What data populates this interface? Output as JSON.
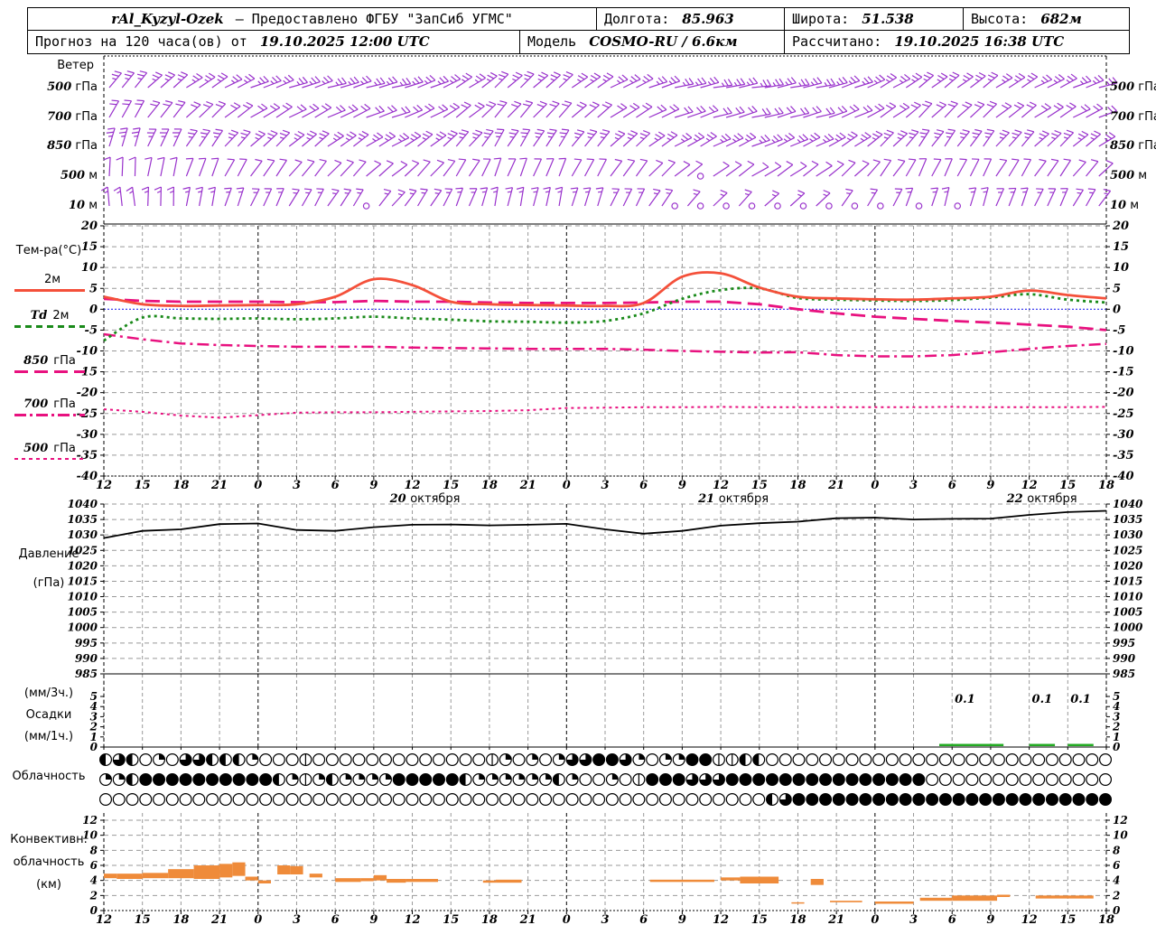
{
  "header": {
    "station": "rAl_Kyzyl-Ozek",
    "provider": "— Предоставлено ФГБУ \"ЗапСиб УГМС\"",
    "lon_label": "Долгота:",
    "lon": "85.963",
    "lat_label": "Широта:",
    "lat": "51.538",
    "alt_label": "Высота:",
    "alt": "682м",
    "forecast_label": "Прогноз на 120 часа(ов) от",
    "forecast_time": "19.10.2025 12:00 UTC",
    "model_label": "Модель",
    "model_value": "COSMO-RU / 6.6км",
    "calc_label": "Рассчитано:",
    "calc_time": "19.10.2025 16:38 UTC"
  },
  "labels": {
    "wind_title": "Ветер",
    "wind_levels": [
      {
        "num": "500",
        "unit": "гПа"
      },
      {
        "num": "700",
        "unit": "гПа"
      },
      {
        "num": "850",
        "unit": "гПа"
      },
      {
        "num": "500",
        "unit": "м"
      },
      {
        "num": "10",
        "unit": "м"
      }
    ],
    "temperature_title": "Тем-ра(°C)",
    "series": [
      {
        "name": "",
        "level": "2м"
      },
      {
        "name": "Td",
        "level": "2м"
      },
      {
        "name": "850",
        "level": "гПа"
      },
      {
        "name": "700",
        "level": "гПа"
      },
      {
        "name": "500",
        "level": "гПа"
      }
    ],
    "pressure": [
      "Давление",
      "(гПа)"
    ],
    "precip": [
      "(мм/3ч.)",
      "Осадки",
      "(мм/1ч.)"
    ],
    "clouds": "Облачность",
    "convective": [
      "Конвективн.",
      "облачность",
      "(км)"
    ]
  },
  "colors": {
    "wind": "#9932cc",
    "t2m": "#f4503a",
    "td2m": "#1a8a1a",
    "t_upper": "#e8117f",
    "zero_line": "#2a2aee",
    "pressure": "#000000",
    "precip_bar": "#22aa22",
    "convective_bar": "#ef8b3a",
    "grid": "#999999"
  },
  "x_axis": {
    "hours": [
      "12",
      "15",
      "18",
      "21",
      "0",
      "3",
      "6",
      "9",
      "12",
      "15",
      "18",
      "21",
      "0",
      "3",
      "6",
      "9",
      "12",
      "15",
      "18",
      "21",
      "0",
      "3",
      "6",
      "9",
      "12",
      "15",
      "18"
    ],
    "dates": [
      {
        "label": "20 октября",
        "tick": 8
      },
      {
        "label": "21 октября",
        "tick": 16
      },
      {
        "label": "22 октября",
        "tick": 24
      }
    ]
  },
  "chart_data": [
    {
      "panel": "wind",
      "type": "wind-barbs",
      "title": "Ветер",
      "levels": [
        {
          "label": "500 гПа",
          "feathers": 2,
          "half": true,
          "calm": [],
          "angles": [
            55,
            45,
            35,
            28,
            22,
            18,
            15,
            15,
            20,
            30,
            40,
            45,
            38,
            28,
            20,
            14,
            10,
            8,
            12,
            18,
            28,
            35,
            40,
            35,
            28,
            22,
            18
          ]
        },
        {
          "label": "700 гПа",
          "feathers": 2,
          "half": false,
          "calm": [],
          "angles": [
            65,
            55,
            45,
            38,
            32,
            28,
            24,
            20,
            26,
            36,
            46,
            50,
            44,
            34,
            26,
            20,
            16,
            12,
            16,
            22,
            32,
            42,
            46,
            40,
            34,
            28,
            24
          ]
        },
        {
          "label": "850 гПа",
          "feathers": 2,
          "half": true,
          "calm": [],
          "angles": [
            78,
            68,
            58,
            48,
            44,
            40,
            34,
            30,
            36,
            46,
            56,
            60,
            54,
            44,
            36,
            30,
            26,
            20,
            26,
            32,
            42,
            52,
            56,
            50,
            44,
            40,
            34
          ]
        },
        {
          "label": "500 м",
          "feathers": 1,
          "half": false,
          "calm": [
            46
          ],
          "angles": [
            92,
            82,
            72,
            62,
            56,
            50,
            46,
            40,
            46,
            56,
            66,
            70,
            64,
            56,
            46,
            40,
            36,
            30,
            36,
            42,
            52,
            62,
            66,
            60,
            56,
            50,
            46
          ]
        },
        {
          "label": "10 м",
          "feathers": 1,
          "half": true,
          "calm": [
            20,
            44,
            46,
            48,
            50,
            52,
            54,
            56,
            58,
            60,
            63,
            66
          ],
          "angles": [
            100,
            92,
            82,
            72,
            66,
            60,
            56,
            50,
            56,
            66,
            76,
            80,
            76,
            66,
            56,
            50,
            46,
            40,
            46,
            52,
            62,
            72,
            76,
            70,
            66,
            60,
            56
          ]
        }
      ]
    },
    {
      "panel": "temperature",
      "type": "line",
      "title": "Тем-ра(°C)",
      "ylim": [
        -40,
        20
      ],
      "yticks": [
        20,
        15,
        10,
        5,
        0,
        -5,
        -10,
        -15,
        -20,
        -25,
        -30,
        -35,
        -40
      ],
      "zero_line": 0,
      "series": [
        {
          "name": "2м",
          "values": [
            3.0,
            1.2,
            0.8,
            0.9,
            1.0,
            1.2,
            3.0,
            7.2,
            5.8,
            1.8,
            1.2,
            1.0,
            0.9,
            0.8,
            1.5,
            7.8,
            8.6,
            5.2,
            3.0,
            2.6,
            2.4,
            2.3,
            2.6,
            3.0,
            4.5,
            3.4,
            2.6
          ]
        },
        {
          "name": "Td 2м",
          "values": [
            -7.5,
            -2.0,
            -2.2,
            -2.3,
            -2.2,
            -2.4,
            -2.2,
            -1.8,
            -2.2,
            -2.5,
            -2.9,
            -3.0,
            -3.2,
            -2.8,
            -1.0,
            2.5,
            4.6,
            5.0,
            2.7,
            2.3,
            2.1,
            2.0,
            2.2,
            2.8,
            3.6,
            2.3,
            1.6
          ]
        },
        {
          "name": "850 гПа",
          "values": [
            2.5,
            2.0,
            1.8,
            1.8,
            1.8,
            1.7,
            1.7,
            2.0,
            1.8,
            1.8,
            1.6,
            1.5,
            1.5,
            1.5,
            1.6,
            1.8,
            1.8,
            1.2,
            0.0,
            -1.0,
            -1.8,
            -2.3,
            -2.8,
            -3.2,
            -3.7,
            -4.2,
            -5.0
          ]
        },
        {
          "name": "700 гПа",
          "values": [
            -6.0,
            -7.2,
            -8.2,
            -8.6,
            -8.8,
            -9.0,
            -9.0,
            -9.0,
            -9.2,
            -9.3,
            -9.4,
            -9.5,
            -9.5,
            -9.5,
            -9.7,
            -10.0,
            -10.2,
            -10.4,
            -10.3,
            -11.0,
            -11.3,
            -11.3,
            -11.0,
            -10.3,
            -9.5,
            -8.8,
            -8.3
          ]
        },
        {
          "name": "500 гПа",
          "values": [
            -24.0,
            -24.6,
            -25.5,
            -26.0,
            -25.4,
            -24.8,
            -24.7,
            -24.7,
            -24.6,
            -24.5,
            -24.4,
            -24.2,
            -23.7,
            -23.6,
            -23.5,
            -23.5,
            -23.4,
            -23.5,
            -23.5,
            -23.5,
            -23.5,
            -23.5,
            -23.4,
            -23.5,
            -23.5,
            -23.5,
            -23.4
          ]
        }
      ]
    },
    {
      "panel": "pressure",
      "type": "line",
      "title": "Давление (гПа)",
      "ylim": [
        985,
        1040
      ],
      "yticks": [
        1040,
        1035,
        1030,
        1025,
        1020,
        1015,
        1010,
        1005,
        1000,
        995,
        990,
        985
      ],
      "values": [
        1029,
        1031.3,
        1031.8,
        1033.5,
        1033.7,
        1031.6,
        1031.3,
        1032.5,
        1033.3,
        1033.4,
        1033.1,
        1033.3,
        1033.6,
        1031.8,
        1030.4,
        1031.3,
        1033.0,
        1033.8,
        1034.3,
        1035.4,
        1035.6,
        1035.0,
        1035.2,
        1035.3,
        1036.5,
        1037.4,
        1037.8
      ]
    },
    {
      "panel": "precipitation",
      "type": "bar",
      "title": "Осадки (мм/3ч.) (мм/1ч.)",
      "ylim": [
        0,
        5
      ],
      "yticks": [
        5,
        4,
        3,
        2,
        1,
        0
      ],
      "bars": [
        {
          "from_hour": 65,
          "to_hour": 70,
          "amount": 0.1
        },
        {
          "from_hour": 72,
          "to_hour": 74,
          "amount": 0.1
        },
        {
          "from_hour": 75,
          "to_hour": 77,
          "amount": 0.1
        }
      ],
      "annotations": [
        {
          "text": "0.1",
          "hour": 67
        },
        {
          "text": "0.1",
          "hour": 73
        },
        {
          "text": "0.1",
          "hour": 76
        }
      ]
    },
    {
      "panel": "cloudiness",
      "type": "symbols",
      "title": "Облачность",
      "okta_rows": [
        "4640256644420001000000000000012020266886202288114400000000000000000000000000",
        "2248888888888421242222888884222222420020188866688888888888888800000000000000",
        "0000000000000000000000000000000000000000000000000046888888888888888888888888"
      ]
    },
    {
      "panel": "convective",
      "type": "range-bar",
      "title": "Конвективн. облачность (км)",
      "ylim": [
        0,
        12
      ],
      "yticks": [
        12,
        10,
        8,
        6,
        4,
        2,
        0
      ],
      "segments": [
        [
          0,
          1,
          4.3,
          4.9
        ],
        [
          1,
          3,
          4.2,
          4.9
        ],
        [
          3,
          5,
          4.3,
          5.0
        ],
        [
          5,
          7,
          4.3,
          5.5
        ],
        [
          7,
          9,
          4.2,
          6.0
        ],
        [
          9,
          10,
          4.4,
          6.2
        ],
        [
          10,
          11,
          4.6,
          6.4
        ],
        [
          11,
          12,
          4.0,
          4.5
        ],
        [
          12,
          13,
          3.6,
          4.0
        ],
        [
          13.5,
          14.5,
          4.8,
          6.0
        ],
        [
          14.5,
          15.5,
          4.8,
          5.9
        ],
        [
          16,
          17,
          4.4,
          4.9
        ],
        [
          18,
          20,
          3.8,
          4.3
        ],
        [
          20,
          21,
          3.9,
          4.3
        ],
        [
          21,
          22,
          4.0,
          4.7
        ],
        [
          22,
          23.5,
          3.7,
          4.2
        ],
        [
          23.5,
          26,
          3.8,
          4.2
        ],
        [
          29.5,
          30.5,
          3.7,
          4.0
        ],
        [
          30.5,
          32.5,
          3.7,
          4.1
        ],
        [
          42.5,
          47.5,
          3.8,
          4.1
        ],
        [
          48,
          49.5,
          4.0,
          4.4
        ],
        [
          49.5,
          52.5,
          3.6,
          4.5
        ],
        [
          53.5,
          54.5,
          1.0,
          1.1
        ],
        [
          55,
          56,
          3.4,
          4.2
        ],
        [
          56.5,
          59,
          1.1,
          1.3
        ],
        [
          60,
          63,
          0.9,
          1.2
        ],
        [
          63.5,
          66,
          1.3,
          1.7
        ],
        [
          66,
          69.5,
          1.3,
          2.0
        ],
        [
          69.5,
          70.5,
          1.8,
          2.1
        ],
        [
          72.5,
          77,
          1.6,
          2.0
        ]
      ]
    }
  ]
}
